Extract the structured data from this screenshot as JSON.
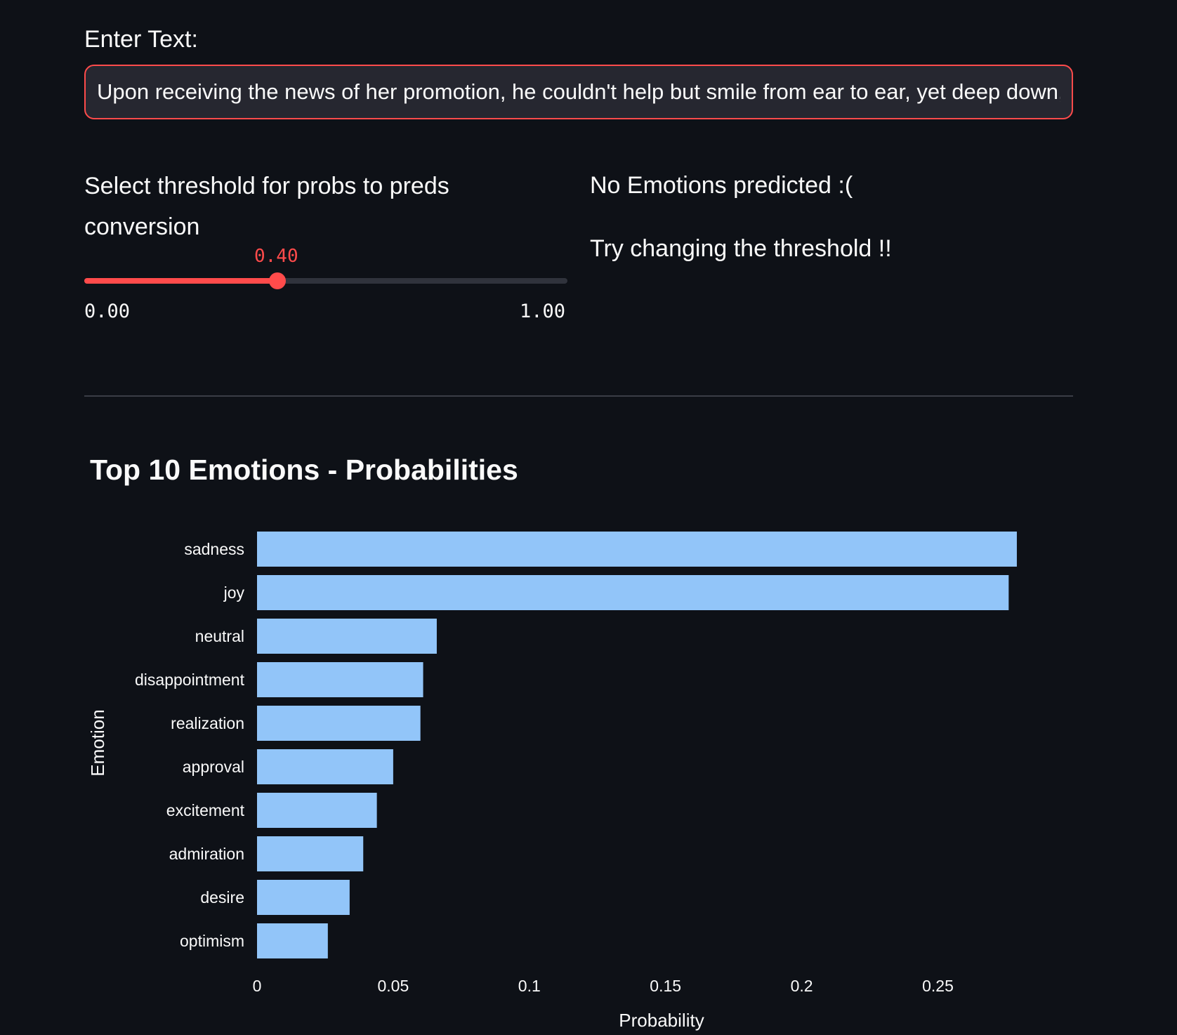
{
  "input": {
    "label": "Enter Text:",
    "value": "Upon receiving the news of her promotion, he couldn't help but smile from ear to ear, yet deep down, he"
  },
  "slider": {
    "label": "Select threshold for probs to preds conversion",
    "value": 0.4,
    "value_text": "0.40",
    "min_text": "0.00",
    "max_text": "1.00"
  },
  "result": {
    "title": "No Emotions predicted :(",
    "hint": "Try changing the threshold !!"
  },
  "colors": {
    "accent": "#ff4b4b",
    "bar": "#92c5f9",
    "background": "#0e1117"
  },
  "chart_data": {
    "type": "bar",
    "orientation": "horizontal",
    "title": "Top 10 Emotions - Probabilities",
    "xlabel": "Probability",
    "ylabel": "Emotion",
    "categories": [
      "sadness",
      "joy",
      "neutral",
      "disappointment",
      "realization",
      "approval",
      "excitement",
      "admiration",
      "desire",
      "optimism"
    ],
    "values": [
      0.279,
      0.276,
      0.066,
      0.061,
      0.06,
      0.05,
      0.044,
      0.039,
      0.034,
      0.026
    ],
    "xlim": [
      0,
      0.295
    ],
    "xticks": [
      0,
      0.05,
      0.1,
      0.15,
      0.2,
      0.25
    ],
    "xtick_labels": [
      "0",
      "0.05",
      "0.1",
      "0.15",
      "0.2",
      "0.25"
    ],
    "grid": false
  }
}
